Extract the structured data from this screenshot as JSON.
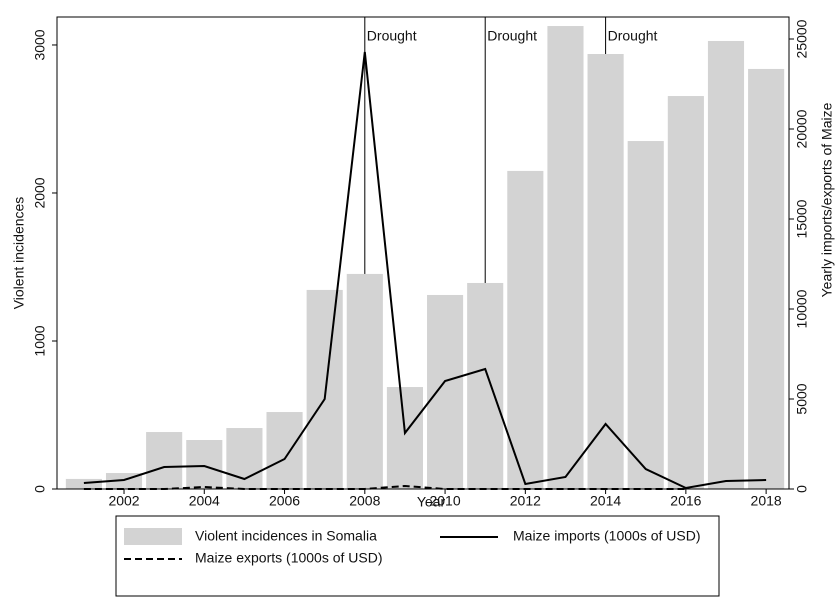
{
  "chart_data": {
    "type": "bar-line",
    "x_label": "Year",
    "y_label": "Violent incidences",
    "y2_label": "Yearly imports/exports of Maize",
    "x": [
      2001,
      2002,
      2003,
      2004,
      2005,
      2006,
      2007,
      2008,
      2009,
      2010,
      2011,
      2012,
      2013,
      2014,
      2015,
      2016,
      2017,
      2018
    ],
    "xlim": [
      2000.33,
      2018.57
    ],
    "xticks": [
      2002,
      2004,
      2006,
      2008,
      2010,
      2012,
      2014,
      2016,
      2018
    ],
    "ylim": [
      0,
      3189
    ],
    "yticks": [
      0,
      1000,
      2000,
      3000
    ],
    "y2lim": [
      0,
      26222
    ],
    "y2ticks": [
      0,
      5000,
      10000,
      15000,
      20000,
      25000
    ],
    "series": [
      {
        "name": "Violent incidences in Somalia",
        "type": "bar",
        "color": "#d3d3d3",
        "values": [
          68,
          108,
          385,
          331,
          412,
          520,
          1345,
          1453,
          689,
          1311,
          1392,
          2149,
          3128,
          2939,
          2351,
          2655,
          3027,
          2838
        ]
      },
      {
        "name": "Maize imports (1000s of USD)",
        "type": "line",
        "axis": "y2",
        "color": "#000000",
        "dash": "solid",
        "values": [
          333,
          500,
          1222,
          1278,
          556,
          1667,
          5000,
          24278,
          3111,
          6000,
          6667,
          278,
          667,
          3611,
          1111,
          56,
          444,
          500
        ]
      },
      {
        "name": "Maize exports (1000s of USD)",
        "type": "line",
        "axis": "y2",
        "color": "#000000",
        "dash": "dashed",
        "values": [
          0,
          0,
          0,
          111,
          0,
          0,
          0,
          0,
          167,
          0,
          0,
          0,
          0,
          0,
          0,
          0,
          null,
          null
        ]
      }
    ],
    "annotations": [
      {
        "x": 2008,
        "text": "Drought"
      },
      {
        "x": 2011,
        "text": "Drought"
      },
      {
        "x": 2014,
        "text": "Drought"
      }
    ]
  }
}
